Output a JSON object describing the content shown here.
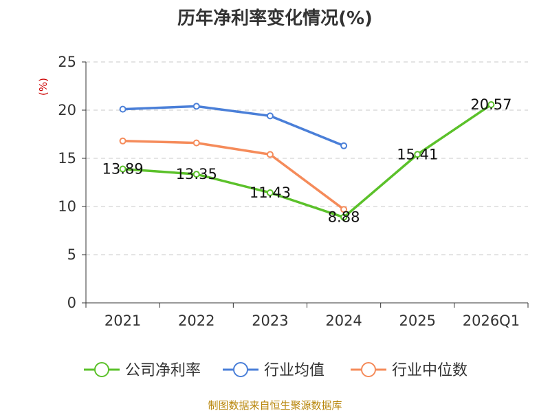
{
  "chart_data": {
    "type": "line",
    "title": "历年净利率变化情况(%)",
    "ylabel": "(%)",
    "xlabel": "",
    "categories": [
      "2021",
      "2022",
      "2023",
      "2024",
      "2025",
      "2026Q1"
    ],
    "ylim": [
      0,
      25
    ],
    "yticks": [
      0,
      5,
      10,
      15,
      20,
      25
    ],
    "grid": true,
    "legend_position": "bottom",
    "series": [
      {
        "name": "公司净利率",
        "color": "#5bc12a",
        "values": [
          13.89,
          13.35,
          11.43,
          8.88,
          15.41,
          20.57
        ],
        "labels": [
          "13.89",
          "13.35",
          "11.43",
          "8.88",
          "15.41",
          "20.57"
        ]
      },
      {
        "name": "行业均值",
        "color": "#4a7fd8",
        "values": [
          20.1,
          20.4,
          19.4,
          16.3,
          null,
          null
        ]
      },
      {
        "name": "行业中位数",
        "color": "#f58b5a",
        "values": [
          16.8,
          16.6,
          15.4,
          9.7,
          null,
          null
        ]
      }
    ],
    "source": "制图数据来自恒生聚源数据库"
  }
}
